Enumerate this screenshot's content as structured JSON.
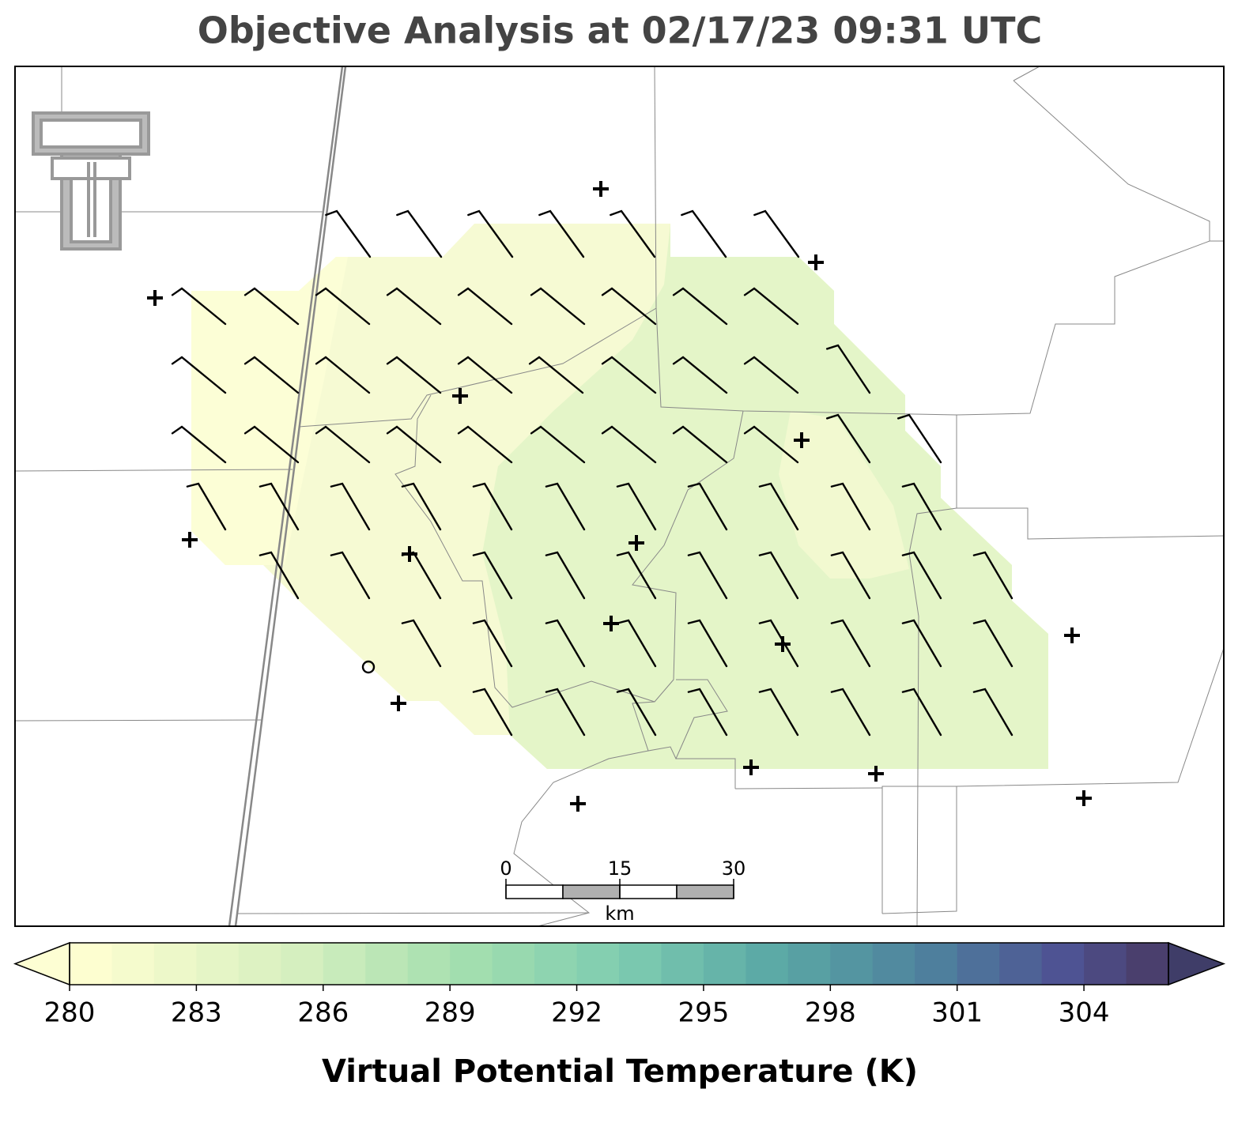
{
  "title": "Objective Analysis at 02/17/23 09:31 UTC",
  "colorbar": {
    "label": "Virtual Potential Temperature (K)",
    "lim": [
      280,
      306
    ],
    "ticks": [
      280,
      283,
      286,
      289,
      292,
      295,
      298,
      301,
      304
    ]
  },
  "scalebar": {
    "ticks": [
      0,
      15,
      30
    ],
    "unit": "km"
  }
}
